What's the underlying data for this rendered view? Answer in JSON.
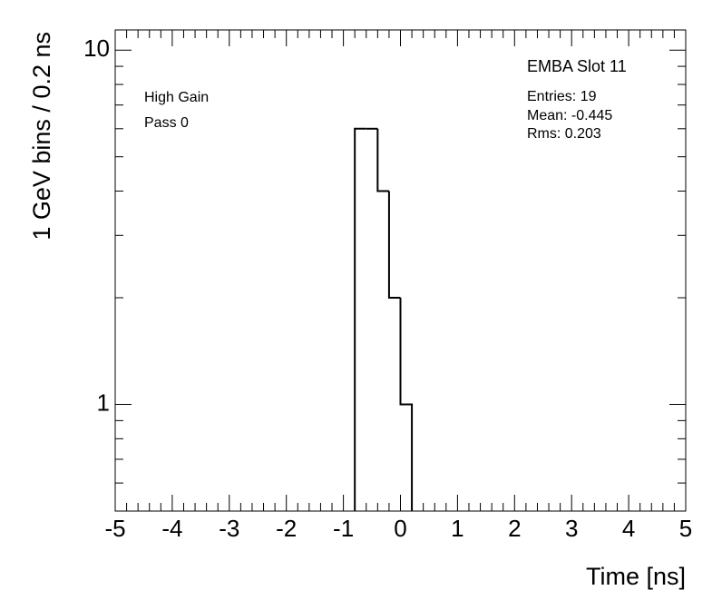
{
  "chart_data": {
    "type": "histogram",
    "title": "EMBA Slot 11",
    "annotations": [
      "Entries: 19",
      "Mean: -0.445",
      "Rms: 0.203",
      "High Gain",
      "Pass 0"
    ],
    "x_label": "Time [ns]",
    "y_label": "1 GeV bins / 0.2 ns",
    "bins": [
      -0.8,
      -0.6,
      -0.4,
      -0.2,
      0,
      0.2
    ],
    "counts": [
      6,
      6,
      4,
      2,
      1
    ],
    "color": "#000000",
    "xlim": [
      -5,
      5
    ],
    "xticks": [
      -5,
      -4,
      -3,
      -2,
      -1,
      0,
      1,
      2,
      3,
      4,
      5
    ],
    "ylim": [
      0.5,
      11.4
    ],
    "yticks": [
      1,
      10
    ],
    "log_y": true,
    "grid": false
  }
}
